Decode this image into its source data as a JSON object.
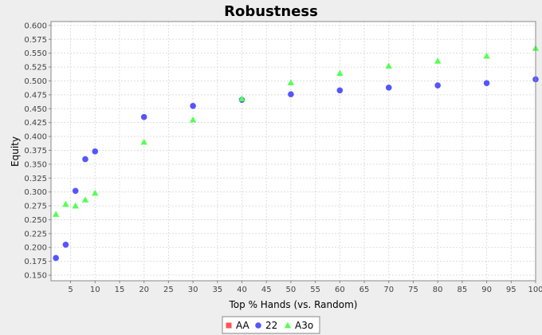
{
  "chart_data": {
    "type": "scatter",
    "title": "Robustness",
    "xlabel": "Top % Hands (vs. Random)",
    "ylabel": "Equity",
    "xlim": [
      1,
      100
    ],
    "ylim": [
      0.14,
      0.607
    ],
    "xticks": [
      5,
      10,
      15,
      20,
      25,
      30,
      35,
      40,
      45,
      50,
      55,
      60,
      65,
      70,
      75,
      80,
      85,
      90,
      95,
      100
    ],
    "yticks": [
      0.15,
      0.175,
      0.2,
      0.225,
      0.25,
      0.275,
      0.3,
      0.325,
      0.35,
      0.375,
      0.4,
      0.425,
      0.45,
      0.475,
      0.5,
      0.525,
      0.55,
      0.575,
      0.6
    ],
    "grid": true,
    "legend_position": "bottom",
    "series": [
      {
        "name": "AA",
        "color": "#ff5555",
        "marker": "square",
        "points": []
      },
      {
        "name": "22",
        "color": "#5555ff",
        "marker": "circle",
        "points": [
          [
            2,
            0.181
          ],
          [
            4,
            0.205
          ],
          [
            6,
            0.302
          ],
          [
            8,
            0.359
          ],
          [
            10,
            0.373
          ],
          [
            20,
            0.435
          ],
          [
            30,
            0.455
          ],
          [
            40,
            0.466
          ],
          [
            50,
            0.476
          ],
          [
            60,
            0.483
          ],
          [
            70,
            0.488
          ],
          [
            80,
            0.492
          ],
          [
            90,
            0.496
          ],
          [
            100,
            0.503
          ]
        ]
      },
      {
        "name": "A3o",
        "color": "#55ff55",
        "marker": "triangle",
        "points": [
          [
            2,
            0.26
          ],
          [
            4,
            0.278
          ],
          [
            6,
            0.275
          ],
          [
            8,
            0.286
          ],
          [
            10,
            0.298
          ],
          [
            20,
            0.39
          ],
          [
            30,
            0.43
          ],
          [
            40,
            0.468
          ],
          [
            50,
            0.497
          ],
          [
            60,
            0.514
          ],
          [
            70,
            0.527
          ],
          [
            80,
            0.536
          ],
          [
            90,
            0.545
          ],
          [
            100,
            0.559
          ]
        ]
      }
    ]
  }
}
